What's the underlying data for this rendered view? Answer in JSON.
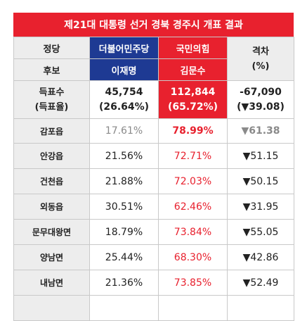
{
  "title": "제21대 대통령 선거 경북 경주시 개표 결과",
  "header": {
    "party_label": "정당",
    "candidate_label": "후보",
    "gap_label_line1": "격차",
    "gap_label_line2": "(%)",
    "dem_party": "더불어민주당",
    "dem_candidate": "이재명",
    "ppp_party": "국민의힘",
    "ppp_candidate": "김문수"
  },
  "total": {
    "label_line1": "득표수",
    "label_line2": "(득표율)",
    "dem_votes": "45,754",
    "dem_rate": "(26.64%)",
    "ppp_votes": "112,844",
    "ppp_rate": "(65.72%)",
    "gap_votes": "-67,090",
    "gap_rate": "(▼39.08)"
  },
  "rows": [
    {
      "district": "감포읍",
      "dem": "17.61%",
      "ppp": "78.99%",
      "gap": "▼61.38"
    },
    {
      "district": "안강읍",
      "dem": "21.56%",
      "ppp": "72.71%",
      "gap": "▼51.15"
    },
    {
      "district": "건천읍",
      "dem": "21.88%",
      "ppp": "72.03%",
      "gap": "▼50.15"
    },
    {
      "district": "외동읍",
      "dem": "30.51%",
      "ppp": "62.46%",
      "gap": "▼31.95"
    },
    {
      "district": "문무대왕면",
      "dem": "18.79%",
      "ppp": "73.84%",
      "gap": "▼55.05"
    },
    {
      "district": "양남면",
      "dem": "25.44%",
      "ppp": "68.30%",
      "gap": "▼42.86"
    },
    {
      "district": "내남면",
      "dem": "21.36%",
      "ppp": "73.85%",
      "gap": "▼52.49"
    }
  ],
  "colors": {
    "accent_red": "#e8212e",
    "dem_blue": "#1e3a93",
    "label_gray": "#ededed"
  }
}
